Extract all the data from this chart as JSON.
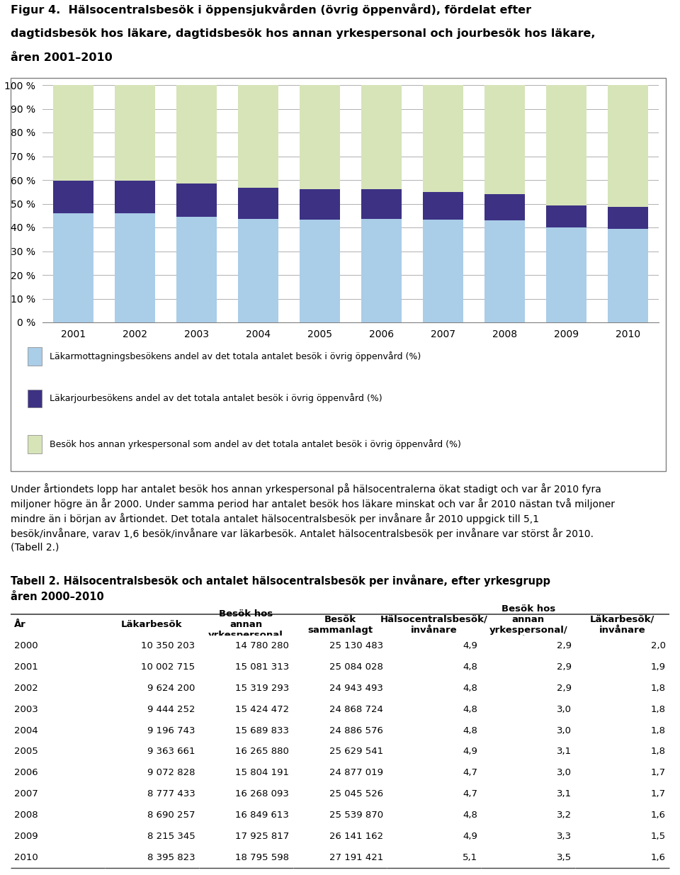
{
  "title_lines": [
    "Figur 4.  Hälsocentralsbesök i öppensjukvården (övrig öppenvård), fördelat efter",
    "dagtidsbesök hos läkare, dagtidsbesök hos annan yrkespersonal och jourbesök hos läkare,",
    "åren 2001–2010"
  ],
  "years": [
    2001,
    2002,
    2003,
    2004,
    2005,
    2006,
    2007,
    2008,
    2009,
    2010
  ],
  "blue_vals": [
    46.0,
    45.9,
    44.5,
    43.5,
    43.3,
    43.5,
    43.4,
    43.1,
    40.0,
    39.5
  ],
  "purple_vals": [
    13.8,
    13.7,
    14.0,
    13.2,
    12.9,
    12.5,
    11.6,
    11.0,
    9.4,
    9.3
  ],
  "green_vals": [
    40.2,
    40.4,
    41.5,
    43.3,
    43.8,
    44.0,
    45.0,
    45.9,
    50.6,
    51.2
  ],
  "color_mottagning": "#aacde8",
  "color_jour": "#3d3184",
  "color_annan": "#d6e4b8",
  "legend_mottagning": "Läkarmottagningsbesökens andel av det totala antalet besök i övrig öppenvård (%)",
  "legend_jour": "Läkarjourbesökens andel av det totala antalet besök i övrig öppenvård (%)",
  "legend_annan": "Besök hos annan yrkespersonal som andel av det totala antalet besök i övrig öppenvård (%)",
  "body_text": "Under årtiondets lopp har antalet besök hos annan yrkespersonal på hälsocentralerna ökat stadigt och var år 2010 fyra miljoner högre än år 2000. Under samma period har antalet besök hos läkare minskat och var år 2010 nästan två miljoner mindre än i början av årtiondet. Det totala antalet hälsocentralsbesök per invånare år 2010 uppgick till 5,1 besök/invånare, varav 1,6 besök/invånare var läkarbesök. Antalet hälsocentralsbesök per invånare var störst år 2010. (Tabell 2.)",
  "tabell_title_bold": "Tabell 2. Hälsocentralsbesök och antalet hälsocentralsbesök per invånare, efter yrkesgrupp",
  "tabell_title_bold2": "åren 2000–2010",
  "table_col0": [
    "2000",
    "2001",
    "2002",
    "2003",
    "2004",
    "2005",
    "2006",
    "2007",
    "2008",
    "2009",
    "2010"
  ],
  "table_col1": [
    "10 350 203",
    "10 002 715",
    "9 624 200",
    "9 444 252",
    "9 196 743",
    "9 363 661",
    "9 072 828",
    "8 777 433",
    "8 690 257",
    "8 215 345",
    "8 395 823"
  ],
  "table_col2": [
    "14 780 280",
    "15 081 313",
    "15 319 293",
    "15 424 472",
    "15 689 833",
    "16 265 880",
    "15 804 191",
    "16 268 093",
    "16 849 613",
    "17 925 817",
    "18 795 598"
  ],
  "table_col3": [
    "25 130 483",
    "25 084 028",
    "24 943 493",
    "24 868 724",
    "24 886 576",
    "25 629 541",
    "24 877 019",
    "25 045 526",
    "25 539 870",
    "26 141 162",
    "27 191 421"
  ],
  "table_col4": [
    "4,9",
    "4,8",
    "4,8",
    "4,8",
    "4,8",
    "4,9",
    "4,7",
    "4,7",
    "4,8",
    "4,9",
    "5,1"
  ],
  "table_col5": [
    "2,9",
    "2,9",
    "2,9",
    "3,0",
    "3,0",
    "3,1",
    "3,0",
    "3,1",
    "3,2",
    "3,3",
    "3,5"
  ],
  "table_col6": [
    "2,0",
    "1,9",
    "1,8",
    "1,8",
    "1,8",
    "1,8",
    "1,7",
    "1,7",
    "1,6",
    "1,5",
    "1,6"
  ],
  "bar_width": 0.65,
  "grid_color": "#b0b0b0"
}
